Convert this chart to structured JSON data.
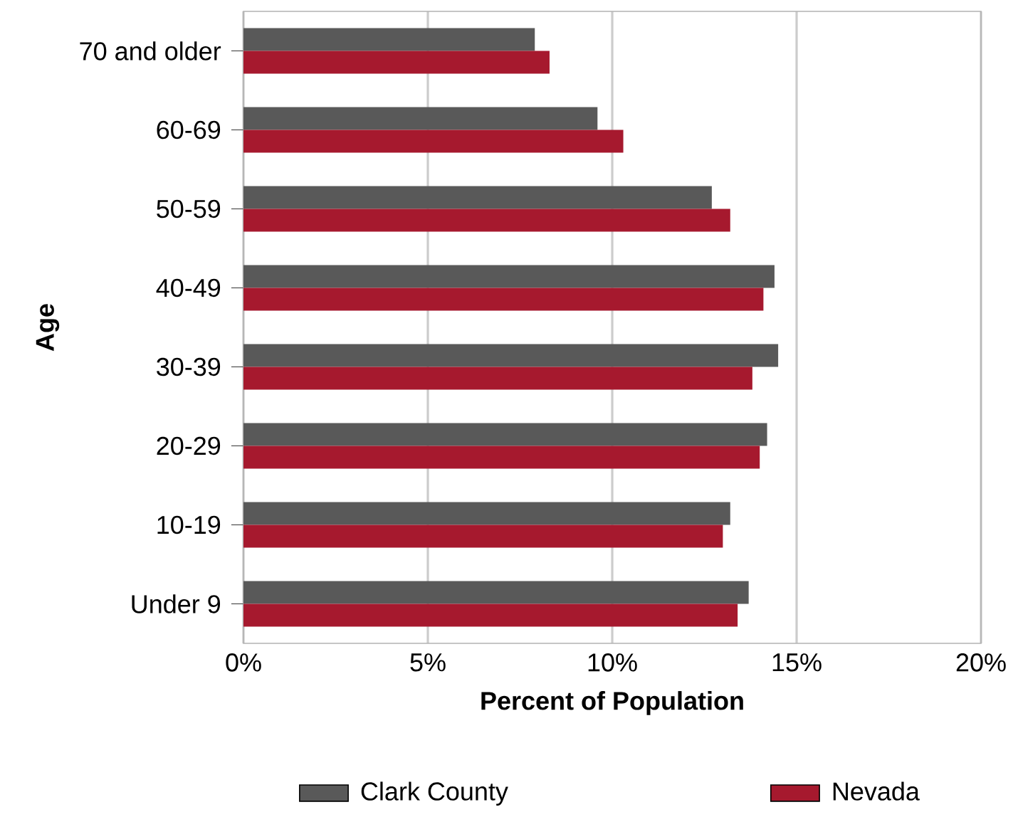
{
  "chart_data": {
    "type": "bar",
    "orientation": "horizontal",
    "xlabel": "Percent of Population",
    "ylabel": "Age",
    "categories": [
      "70 and older",
      "60-69",
      "50-59",
      "40-49",
      "30-39",
      "20-29",
      "10-19",
      "Under 9"
    ],
    "series": [
      {
        "name": "Clark County",
        "color": "#595959",
        "values": [
          7.9,
          9.6,
          12.7,
          14.4,
          14.5,
          14.2,
          13.2,
          13.7
        ]
      },
      {
        "name": "Nevada",
        "color": "#a6192e",
        "values": [
          8.3,
          10.3,
          13.2,
          14.1,
          13.8,
          14.0,
          13.0,
          13.4
        ]
      }
    ],
    "xlim": [
      0,
      20
    ],
    "xticks": [
      {
        "value": 0,
        "label": "0%"
      },
      {
        "value": 5,
        "label": "5%"
      },
      {
        "value": 10,
        "label": "10%"
      },
      {
        "value": 15,
        "label": "15%"
      },
      {
        "value": 20,
        "label": "20%"
      }
    ],
    "grid": "x",
    "legend": "bottom"
  }
}
